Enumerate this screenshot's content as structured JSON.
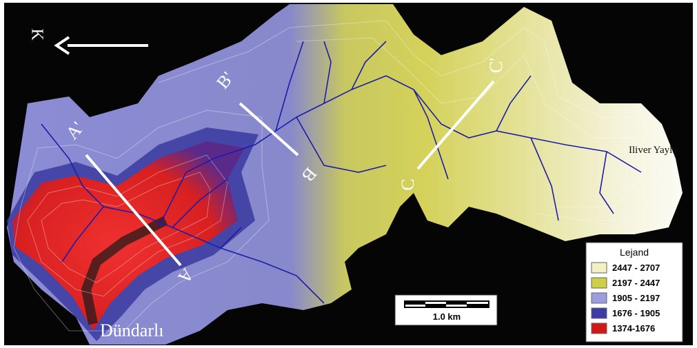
{
  "north_label": "K",
  "sections": [
    {
      "start": "A",
      "end": "A'"
    },
    {
      "start": "B",
      "end": "B'"
    },
    {
      "start": "C",
      "end": "C'"
    }
  ],
  "places": [
    "Dündarlı",
    "Iliver Yayla"
  ],
  "scale_bar": {
    "label": "1.0 km"
  },
  "legend": {
    "title": "Lejand",
    "items": [
      {
        "label": "2447 - 2707",
        "color": "#f3f1c4"
      },
      {
        "label": "2197 - 2447",
        "color": "#cfcf45"
      },
      {
        "label": "1905 - 2197",
        "color": "#9c9ce0"
      },
      {
        "label": "1676 - 1905",
        "color": "#3c3ca8"
      },
      {
        "label": "1374-1676",
        "color": "#d01818"
      }
    ]
  }
}
